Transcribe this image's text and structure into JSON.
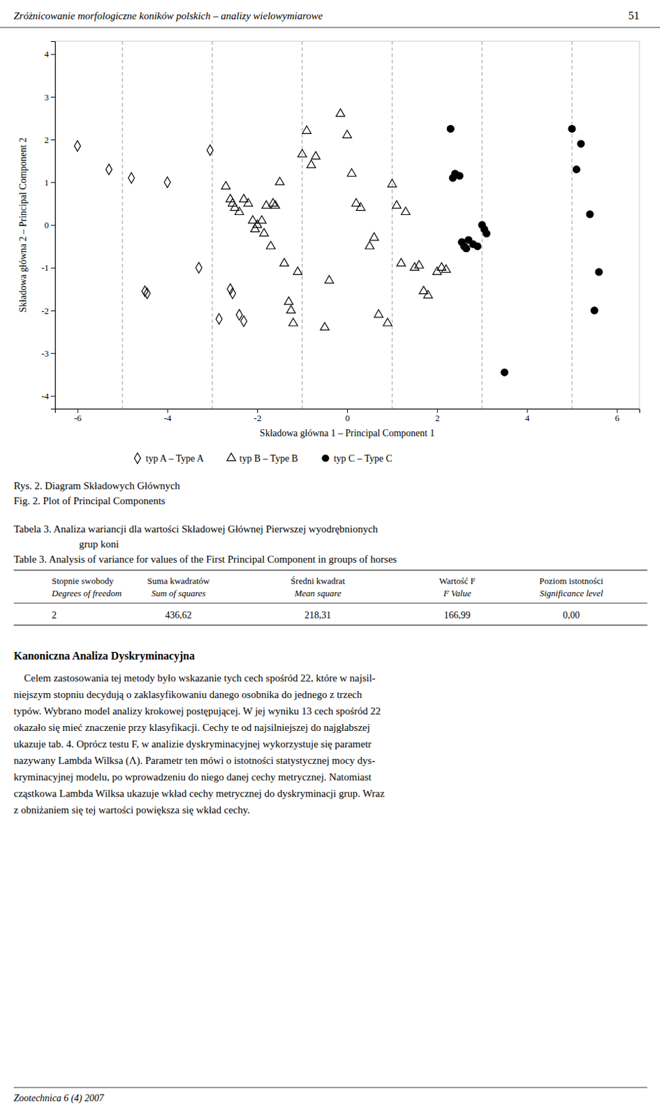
{
  "page_header": "Zróżnicowanie morfologiczne koników polskich – analizy wielowymiarowe",
  "page_number": "51",
  "chart_data": {
    "type": "scatter",
    "xlabel": "Składowa główna 1 – Principal Component 1",
    "ylabel": "Składowa główna 2 – Principal Component 2",
    "xlim": [
      -6.5,
      6.5
    ],
    "ylim": [
      -4.3,
      4.3
    ],
    "xticks": [
      -6,
      -4,
      -2,
      0,
      2,
      4,
      6
    ],
    "yticks": [
      -4,
      -3,
      -2,
      -1,
      0,
      1,
      2,
      3,
      4
    ],
    "grid": false,
    "vlines": [
      -5,
      -3,
      -1,
      1,
      3,
      5
    ],
    "series": [
      {
        "name": "typ A – Type A",
        "color": "#000000",
        "marker": "open-diamond",
        "x": [
          -6.0,
          -5.3,
          -4.8,
          -4.5,
          -4.45,
          -4.0,
          -3.3,
          -3.05,
          -2.85,
          -2.6,
          -2.55,
          -2.4,
          -2.3
        ],
        "values": [
          1.85,
          1.3,
          1.1,
          -1.55,
          -1.6,
          1.0,
          -1.0,
          1.75,
          -2.2,
          -1.5,
          -1.6,
          -2.1,
          -2.25
        ]
      },
      {
        "name": "typ B – Type B",
        "color": "#000000",
        "marker": "open-triangle",
        "x": [
          -2.7,
          -2.6,
          -2.55,
          -2.5,
          -2.4,
          -2.3,
          -2.2,
          -2.1,
          -2.05,
          -2.0,
          -1.9,
          -1.85,
          -1.8,
          -1.7,
          -1.65,
          -1.6,
          -1.5,
          -1.4,
          -1.3,
          -1.25,
          -1.2,
          -1.1,
          -1.0,
          -0.9,
          -0.8,
          -0.7,
          -0.5,
          -0.4,
          -0.15,
          0.0,
          0.1,
          0.2,
          0.3,
          0.5,
          0.6,
          0.7,
          0.9,
          1.0,
          1.1,
          1.2,
          1.3,
          1.5,
          1.6,
          1.7,
          1.8,
          2.0,
          2.1,
          2.2
        ],
        "values": [
          0.9,
          0.6,
          0.5,
          0.4,
          0.3,
          0.6,
          0.5,
          0.1,
          -0.1,
          0.0,
          0.1,
          -0.2,
          0.45,
          -0.5,
          0.5,
          0.45,
          1.0,
          -0.9,
          -1.8,
          -2.0,
          -2.3,
          -1.1,
          1.65,
          2.2,
          1.4,
          1.6,
          -2.4,
          -1.3,
          2.6,
          2.1,
          1.2,
          0.5,
          0.4,
          -0.5,
          -0.3,
          -2.1,
          -2.3,
          0.95,
          0.45,
          -0.9,
          0.3,
          -1.0,
          -0.95,
          -1.55,
          -1.65,
          -1.1,
          -1.0,
          -1.05
        ]
      },
      {
        "name": "typ C – Type C",
        "color": "#000000",
        "marker": "circle",
        "x": [
          2.3,
          2.35,
          2.4,
          2.5,
          2.55,
          2.6,
          2.65,
          2.7,
          2.8,
          2.9,
          3.0,
          3.05,
          3.1,
          3.5,
          5.0,
          5.1,
          5.2,
          5.4,
          5.5,
          5.6
        ],
        "values": [
          2.25,
          1.1,
          1.2,
          1.15,
          -0.4,
          -0.5,
          -0.55,
          -0.35,
          -0.45,
          -0.5,
          0.0,
          -0.1,
          -0.2,
          -3.45,
          2.25,
          1.3,
          1.9,
          0.25,
          -2.0,
          -1.1
        ]
      }
    ]
  },
  "caption": [
    "Rys. 2. Diagram Składowych Głównych",
    "Fig. 2. Plot of Principal Components"
  ],
  "table": {
    "title_lines": [
      "Tabela 3. Analiza wariancji dla wartości Składowej Głównej Pierwszej wyodrębnionych",
      "grup koni",
      "Table 3. Analysis of variance for values of the First Principal Component in groups of horses"
    ],
    "headers_row1": [
      "Stopnie swobody",
      "Suma kwadratów",
      "Średni kwadrat",
      "Wartość F",
      "Poziom istotności"
    ],
    "headers_row2": [
      "Degrees of freedom",
      "Sum of squares",
      "Mean square",
      "F Value",
      "Significance level"
    ],
    "rows": [
      [
        "2",
        "436,62",
        "218,31",
        "166,99",
        "0,00"
      ]
    ]
  },
  "section_title": "Kanoniczna Analiza Dyskryminacyjna",
  "paragraph_lines": [
    "    Celem zastosowania tej metody było wskazanie tych cech spośród 22, które w najsil-",
    "niejszym stopniu decydują o zaklasyfikowaniu danego osobnika do jednego z trzech",
    "typów. Wybrano model analizy krokowej postępującej. W jej wyniku 13 cech spośród 22",
    "okazało się mieć znaczenie przy klasyfikacji. Cechy te od najsilniejszej do najgłabszej",
    "ukazuje tab. 4. Oprócz testu F, w analizie dyskryminacyjnej wykorzystuje się parametr",
    "nazywany Lambda Wilksa (Λ). Parametr ten mówi o istotności statystycznej mocy dys-",
    "kryminacyjnej modelu, po wprowadzeniu do niego danej cechy metrycznej. Natomiast",
    "cząstkowa Lambda Wilksa ukazuje wkład cechy metrycznej do dyskryminacji grup. Wraz",
    "z obniżaniem się tej wartości powiększa się wkład cechy."
  ],
  "footer": "Zootechnica 6 (4) 2007"
}
